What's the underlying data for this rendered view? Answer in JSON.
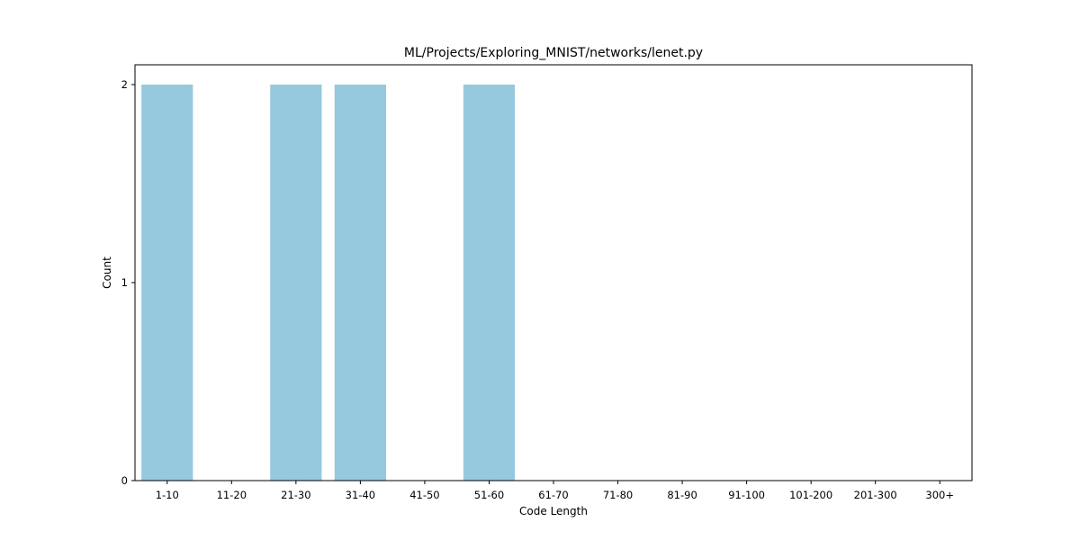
{
  "chart_data": {
    "type": "bar",
    "title": "ML/Projects/Exploring_MNIST/networks/lenet.py",
    "xlabel": "Code Length",
    "ylabel": "Count",
    "categories": [
      "1-10",
      "11-20",
      "21-30",
      "31-40",
      "41-50",
      "51-60",
      "61-70",
      "71-80",
      "81-90",
      "91-100",
      "101-200",
      "201-300",
      "300+"
    ],
    "values": [
      2,
      0,
      2,
      2,
      0,
      2,
      0,
      0,
      0,
      0,
      0,
      0,
      0
    ],
    "yticks": [
      "0",
      "1",
      "2"
    ],
    "ylim": [
      0,
      2.1
    ],
    "grid": false,
    "legend": "none",
    "bar_color": "#96c9de"
  }
}
